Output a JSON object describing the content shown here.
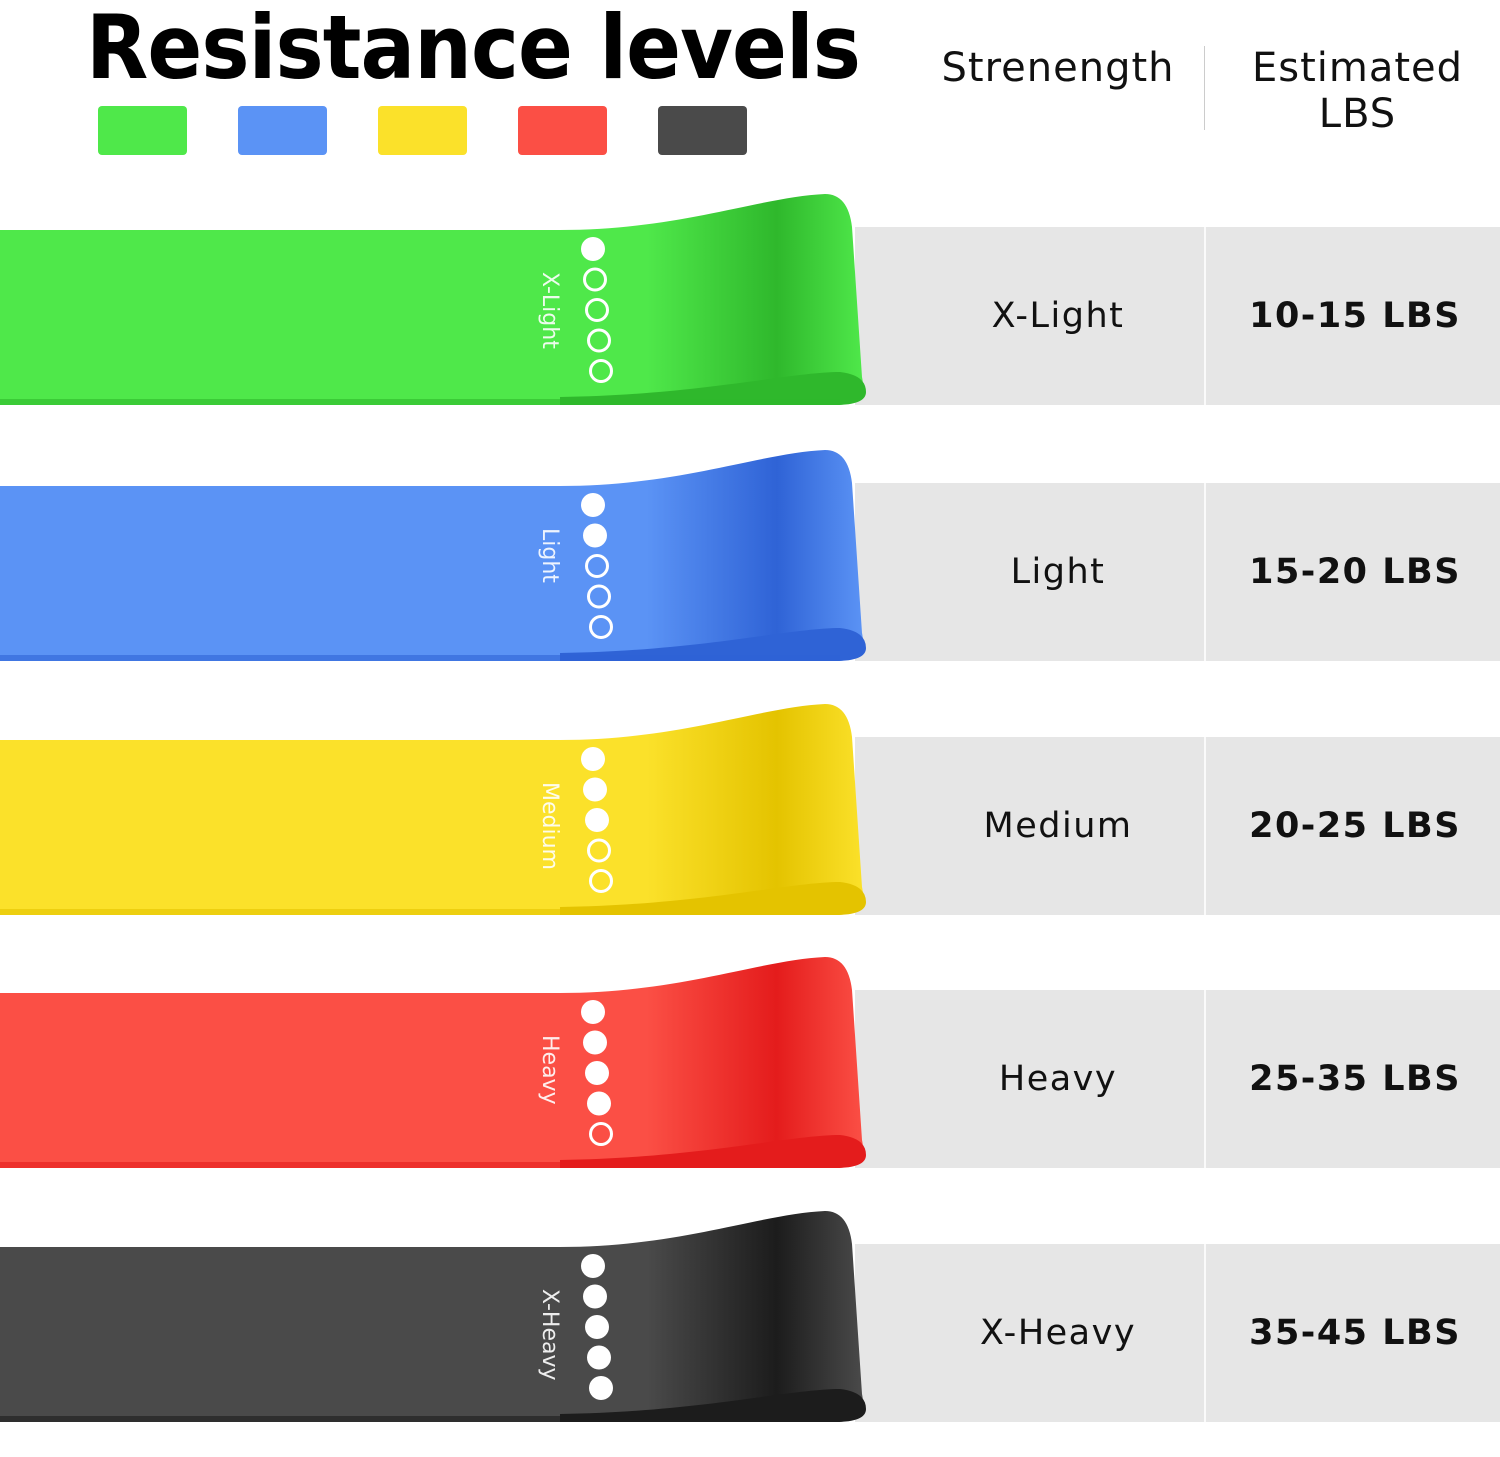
{
  "title": "Resistance levels",
  "header": {
    "strength": "Strenength",
    "lbs_line1": "Estimated",
    "lbs_line2": "LBS"
  },
  "levels": [
    {
      "strength": "X-Light",
      "lbs": "10-15 LBS",
      "band_label": "X-Light",
      "color": "#4fe84a",
      "dark": "#2fb82c",
      "filled_dots": 1,
      "total_dots": 5
    },
    {
      "strength": "Light",
      "lbs": "15-20 LBS",
      "band_label": "Light",
      "color": "#5b93f5",
      "dark": "#2f63d6",
      "filled_dots": 2,
      "total_dots": 5
    },
    {
      "strength": "Medium",
      "lbs": "20-25 LBS",
      "band_label": "Medium",
      "color": "#fbe12a",
      "dark": "#e4c300",
      "filled_dots": 3,
      "total_dots": 5
    },
    {
      "strength": "Heavy",
      "lbs": "25-35 LBS",
      "band_label": "Heavy",
      "color": "#fb4f45",
      "dark": "#e41c1c",
      "filled_dots": 4,
      "total_dots": 5
    },
    {
      "strength": "X-Heavy",
      "lbs": "35-45 LBS",
      "band_label": "X-Heavy",
      "color": "#4a4a4a",
      "dark": "#1c1c1c",
      "filled_dots": 5,
      "total_dots": 5
    }
  ]
}
